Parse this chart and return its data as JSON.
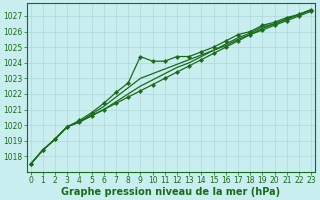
{
  "xlabel": "Graphe pression niveau de la mer (hPa)",
  "ylim": [
    1017.0,
    1027.8
  ],
  "xlim": [
    -0.3,
    23.3
  ],
  "yticks": [
    1018,
    1019,
    1020,
    1021,
    1022,
    1023,
    1024,
    1025,
    1026,
    1027
  ],
  "xticks": [
    0,
    1,
    2,
    3,
    4,
    5,
    6,
    7,
    8,
    9,
    10,
    11,
    12,
    13,
    14,
    15,
    16,
    17,
    18,
    19,
    20,
    21,
    22,
    23
  ],
  "background_color": "#c8eef0",
  "grid_color": "#b0d8d8",
  "line_color": "#1a6b1a",
  "marker_color": "#1a6b1a",
  "series": [
    {
      "y": [
        1017.5,
        1018.4,
        1019.1,
        1019.9,
        1020.2,
        1020.6,
        1021.0,
        1021.5,
        1022.0,
        1022.5,
        1022.9,
        1023.3,
        1023.7,
        1024.0,
        1024.4,
        1024.8,
        1025.2,
        1025.6,
        1025.9,
        1026.3,
        1026.5,
        1026.8,
        1027.1,
        1027.4
      ],
      "marker": false,
      "lw": 0.9
    },
    {
      "y": [
        1017.5,
        1018.4,
        1019.1,
        1019.9,
        1020.2,
        1020.7,
        1021.2,
        1021.8,
        1022.4,
        1023.0,
        1023.3,
        1023.6,
        1023.9,
        1024.2,
        1024.5,
        1024.8,
        1025.1,
        1025.5,
        1025.8,
        1026.2,
        1026.5,
        1026.8,
        1027.1,
        1027.4
      ],
      "marker": false,
      "lw": 0.9
    },
    {
      "y": [
        1017.5,
        1018.4,
        1019.1,
        1019.9,
        1020.3,
        1020.8,
        1021.4,
        1022.1,
        1022.7,
        1024.4,
        1024.1,
        1024.1,
        1024.4,
        1024.4,
        1024.7,
        1025.0,
        1025.4,
        1025.8,
        1026.0,
        1026.4,
        1026.6,
        1026.9,
        1027.1,
        1027.4
      ],
      "marker": true,
      "lw": 0.9
    },
    {
      "y": [
        1017.5,
        1018.4,
        1019.1,
        1019.9,
        1020.2,
        1020.6,
        1021.0,
        1021.4,
        1021.8,
        1022.2,
        1022.6,
        1023.0,
        1023.4,
        1023.8,
        1024.2,
        1024.6,
        1025.0,
        1025.4,
        1025.8,
        1026.1,
        1026.4,
        1026.7,
        1027.0,
        1027.3
      ],
      "marker": true,
      "lw": 0.9
    }
  ],
  "font_color": "#1a6b1a",
  "tick_fontsize": 5.5,
  "label_fontsize": 7
}
